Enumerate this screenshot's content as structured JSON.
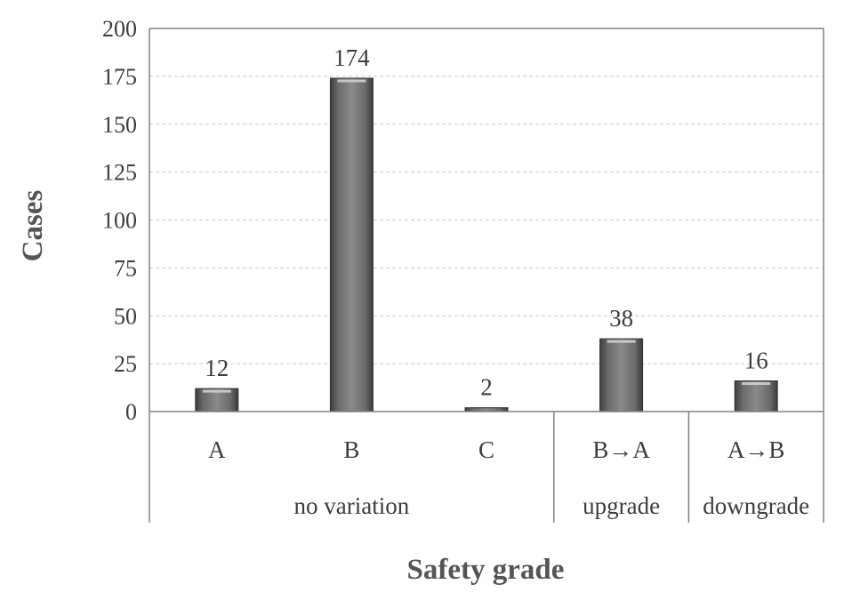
{
  "chart_data": {
    "type": "bar",
    "categories": [
      "A",
      "B",
      "C",
      "B→A",
      "A→B"
    ],
    "values": [
      12,
      174,
      2,
      38,
      16
    ],
    "groups": [
      {
        "label": "no variation",
        "categories": [
          "A",
          "B",
          "C"
        ]
      },
      {
        "label": "upgrade",
        "categories": [
          "B→A"
        ]
      },
      {
        "label": "downgrade",
        "categories": [
          "A→B"
        ]
      }
    ],
    "title": "",
    "xlabel": "Safety grade",
    "ylabel": "Cases",
    "ylim": [
      0,
      200
    ],
    "yticks": [
      0,
      25,
      50,
      75,
      100,
      125,
      150,
      175,
      200
    ],
    "grid": true,
    "data_labels": true,
    "colors": {
      "bar": "#7a7a7a",
      "bar_highlight": "#cfcfcf",
      "axis": "#808080",
      "grid": "#c8c8c8"
    }
  }
}
